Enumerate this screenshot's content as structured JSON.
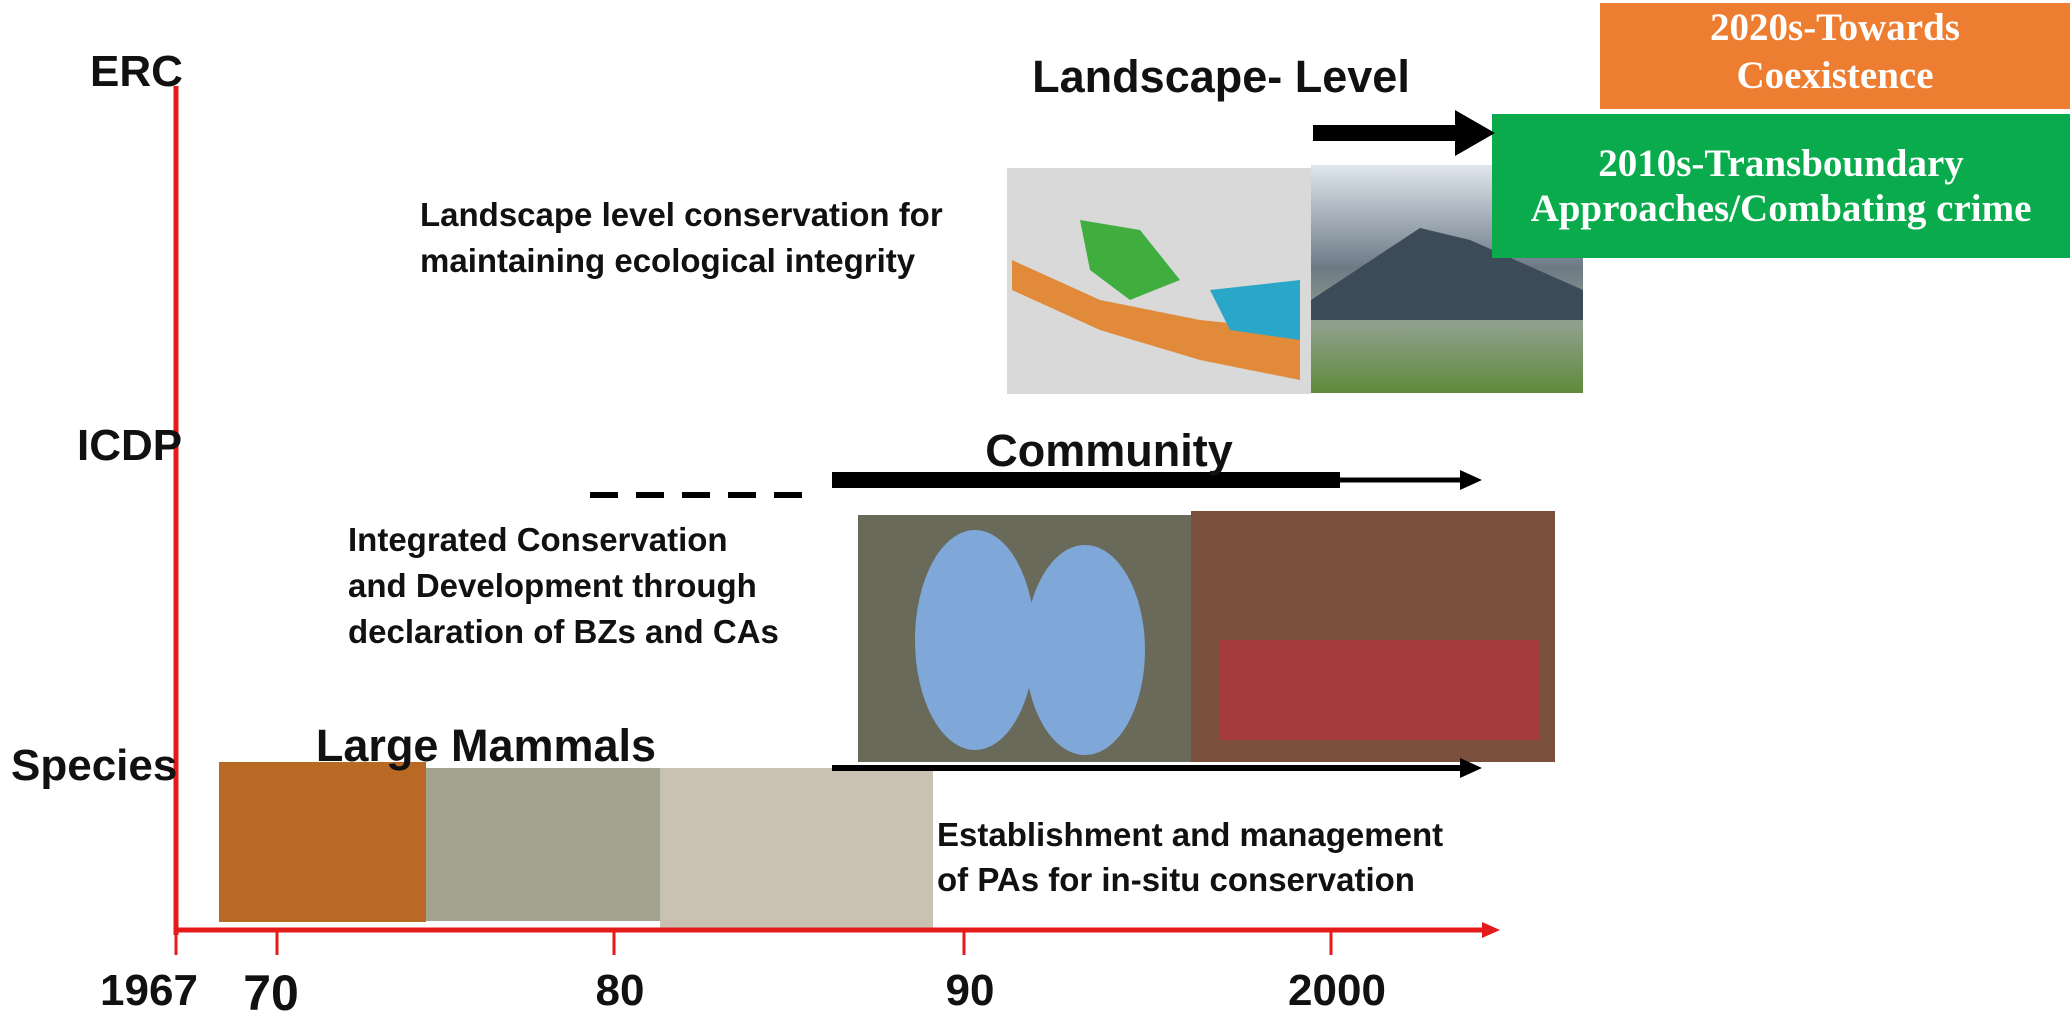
{
  "axis": {
    "levels": [
      "ERC",
      "ICDP",
      "Species"
    ],
    "years": [
      "1967",
      "70",
      "80",
      "90",
      "2000"
    ]
  },
  "phases": {
    "landscape": {
      "title": "Landscape- Level",
      "description": [
        "Landscape level conservation for",
        "maintaining ecological integrity"
      ]
    },
    "community": {
      "title": "Community",
      "description": [
        "Integrated Conservation",
        "and Development through",
        "declaration of BZs and CAs"
      ]
    },
    "species": {
      "title": "Large Mammals",
      "description": [
        "Establishment and management",
        "of PAs for in-situ conservation"
      ]
    }
  },
  "boxes": {
    "orange": [
      "2020s-Towards",
      "Coexistence"
    ],
    "green": [
      "2010s-Transboundary",
      "Approaches/Combating crime"
    ]
  }
}
